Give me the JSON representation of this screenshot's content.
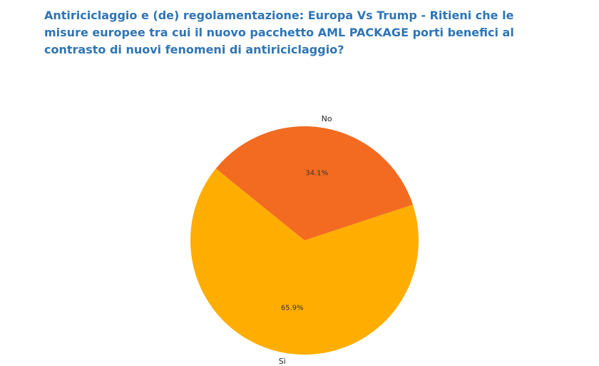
{
  "title": "Antiriciclaggio e (de) regolamentazione: Europa Vs Trump - Ritieni che le misure europee tra cui il nuovo pacchetto AML PACKAGE porti benefici al contrasto di nuovi fenomeni di antiriciclaggio?",
  "chart_data": {
    "type": "pie",
    "title": "",
    "categories": [
      "No",
      "Sì"
    ],
    "values": [
      34.1,
      65.9
    ],
    "labels": [
      "34.1%",
      "65.9%"
    ],
    "colors": [
      "#F26B21",
      "#FFAE00"
    ],
    "legend": "none"
  }
}
